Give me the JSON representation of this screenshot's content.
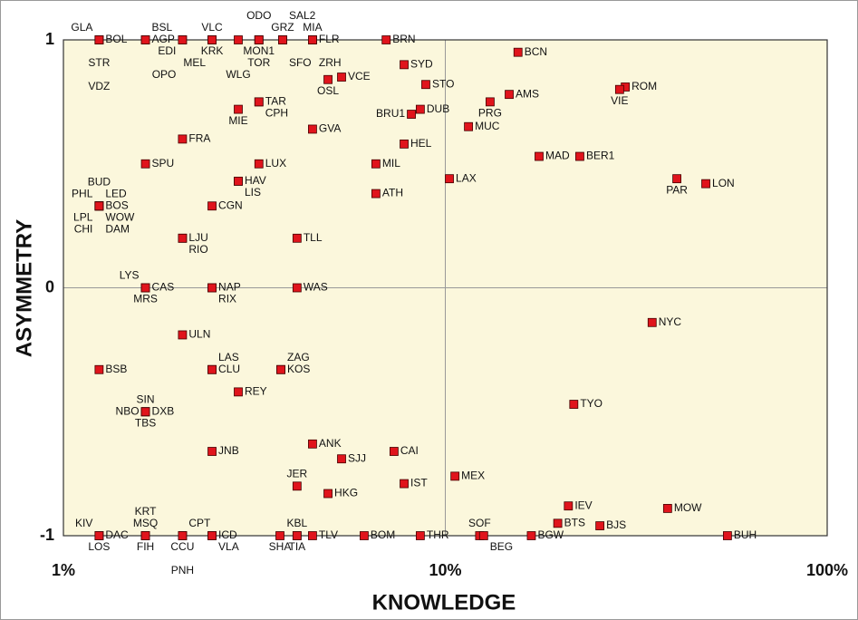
{
  "chart_data": {
    "type": "scatter",
    "x_label": "KNOWLEDGE",
    "y_label": "ASYMMETRY",
    "xlog": true,
    "xlim": [
      1,
      100
    ],
    "xticks": [
      {
        "value": 1,
        "label": "1%"
      },
      {
        "value": 10,
        "label": "10%"
      },
      {
        "value": 100,
        "label": "100%"
      }
    ],
    "ylim": [
      -1,
      1
    ],
    "yticks": [
      -1,
      0,
      1
    ],
    "grid": true,
    "color": "#e0141c",
    "background": "#fbf7dc",
    "points": [
      {
        "name": "BOL",
        "x": 1.24,
        "y": 1,
        "label_pos": "mr"
      },
      {
        "name": "GLA",
        "x": 1.24,
        "y": 1,
        "label_pos": "t1l"
      },
      {
        "name": "STR",
        "x": 1.24,
        "y": 1,
        "label_pos": "b2c"
      },
      {
        "name": "VDZ",
        "x": 1.24,
        "y": 1,
        "label_pos": "b4c"
      },
      {
        "name": "AGP",
        "x": 1.64,
        "y": 1,
        "label_pos": "mr"
      },
      {
        "name": "BSL",
        "x": 1.64,
        "y": 1,
        "label_pos": "t1r"
      },
      {
        "name": "EDI",
        "x": 2.05,
        "y": 1,
        "label_pos": "b1l"
      },
      {
        "name": "OPO",
        "x": 2.05,
        "y": 1,
        "label_pos": "b3l"
      },
      {
        "name": "VLC",
        "x": 2.45,
        "y": 1,
        "label_pos": "t1c"
      },
      {
        "name": "KRK",
        "x": 2.45,
        "y": 1,
        "label_pos": "b1c"
      },
      {
        "name": "MEL",
        "x": 2.45,
        "y": 1,
        "label_pos": "b2l"
      },
      {
        "name": "WLG",
        "x": 2.87,
        "y": 1,
        "label_pos": "b3c"
      },
      {
        "name": "ODO",
        "x": 3.25,
        "y": 1,
        "label_pos": "t2c"
      },
      {
        "name": "MON1",
        "x": 3.25,
        "y": 1,
        "label_pos": "b1c"
      },
      {
        "name": "TOR",
        "x": 3.25,
        "y": 1,
        "label_pos": "b2c"
      },
      {
        "name": "GRZ",
        "x": 3.75,
        "y": 1,
        "label_pos": "t1c"
      },
      {
        "name": "SAL2",
        "x": 3.75,
        "y": 1,
        "label_pos": "t2r"
      },
      {
        "name": "SFO",
        "x": 3.75,
        "y": 1,
        "label_pos": "b2r"
      },
      {
        "name": "MIA",
        "x": 4.49,
        "y": 1,
        "label_pos": "t1c"
      },
      {
        "name": "FLR",
        "x": 4.49,
        "y": 1,
        "label_pos": "mr"
      },
      {
        "name": "ZRH",
        "x": 4.49,
        "y": 1,
        "label_pos": "b2r"
      },
      {
        "name": "BRN",
        "x": 7.0,
        "y": 1,
        "label_pos": "mr"
      },
      {
        "name": "BCN",
        "x": 15.5,
        "y": 0.95,
        "label_pos": "mr"
      },
      {
        "name": "SYD",
        "x": 7.8,
        "y": 0.9,
        "label_pos": "mr"
      },
      {
        "name": "OSL",
        "x": 4.93,
        "y": 0.84,
        "label_pos": "b1c"
      },
      {
        "name": "VCE",
        "x": 5.35,
        "y": 0.85,
        "label_pos": "mr"
      },
      {
        "name": "STO",
        "x": 8.89,
        "y": 0.82,
        "label_pos": "mr"
      },
      {
        "name": "AMS",
        "x": 14.7,
        "y": 0.78,
        "label_pos": "mr"
      },
      {
        "name": "PRG",
        "x": 13.1,
        "y": 0.75,
        "label_pos": "b1c"
      },
      {
        "name": "ROM",
        "x": 29.6,
        "y": 0.81,
        "label_pos": "mr"
      },
      {
        "name": "VIE",
        "x": 28.6,
        "y": 0.8,
        "label_pos": "b1c"
      },
      {
        "name": "TAR",
        "x": 3.25,
        "y": 0.75,
        "label_pos": "mr"
      },
      {
        "name": "CPH",
        "x": 3.25,
        "y": 0.75,
        "label_pos": "b1r"
      },
      {
        "name": "MIE",
        "x": 2.87,
        "y": 0.72,
        "label_pos": "b1c"
      },
      {
        "name": "BRU1",
        "x": 8.15,
        "y": 0.7,
        "label_pos": "ml"
      },
      {
        "name": "DUB",
        "x": 8.6,
        "y": 0.72,
        "label_pos": "mr"
      },
      {
        "name": "MUC",
        "x": 11.5,
        "y": 0.65,
        "label_pos": "mr"
      },
      {
        "name": "GVA",
        "x": 4.49,
        "y": 0.64,
        "label_pos": "mr"
      },
      {
        "name": "FRA",
        "x": 2.05,
        "y": 0.6,
        "label_pos": "mr"
      },
      {
        "name": "HEL",
        "x": 7.8,
        "y": 0.58,
        "label_pos": "mr"
      },
      {
        "name": "MAD",
        "x": 17.6,
        "y": 0.53,
        "label_pos": "mr"
      },
      {
        "name": "BER1",
        "x": 22.5,
        "y": 0.53,
        "label_pos": "mr"
      },
      {
        "name": "SPU",
        "x": 1.64,
        "y": 0.5,
        "label_pos": "mr"
      },
      {
        "name": "LUX",
        "x": 3.25,
        "y": 0.5,
        "label_pos": "mr"
      },
      {
        "name": "MIL",
        "x": 6.58,
        "y": 0.5,
        "label_pos": "mr"
      },
      {
        "name": "LAX",
        "x": 10.25,
        "y": 0.44,
        "label_pos": "mr"
      },
      {
        "name": "PAR",
        "x": 40.4,
        "y": 0.44,
        "label_pos": "b1c"
      },
      {
        "name": "LON",
        "x": 48.1,
        "y": 0.42,
        "label_pos": "mr"
      },
      {
        "name": "HAV",
        "x": 2.87,
        "y": 0.43,
        "label_pos": "mr"
      },
      {
        "name": "LIS",
        "x": 2.87,
        "y": 0.43,
        "label_pos": "b1r"
      },
      {
        "name": "ATH",
        "x": 6.58,
        "y": 0.38,
        "label_pos": "mr"
      },
      {
        "name": "CGN",
        "x": 2.45,
        "y": 0.33,
        "label_pos": "mr"
      },
      {
        "name": "BOS",
        "x": 1.24,
        "y": 0.33,
        "label_pos": "mr"
      },
      {
        "name": "BUD",
        "x": 1.24,
        "y": 0.33,
        "label_pos": "t2c"
      },
      {
        "name": "PHL",
        "x": 1.24,
        "y": 0.33,
        "label_pos": "t1l"
      },
      {
        "name": "LED",
        "x": 1.24,
        "y": 0.33,
        "label_pos": "t1r"
      },
      {
        "name": "LPL",
        "x": 1.24,
        "y": 0.33,
        "label_pos": "b1l"
      },
      {
        "name": "WOW",
        "x": 1.24,
        "y": 0.33,
        "label_pos": "b1r"
      },
      {
        "name": "CHI",
        "x": 1.24,
        "y": 0.33,
        "label_pos": "b2l"
      },
      {
        "name": "DAM",
        "x": 1.24,
        "y": 0.33,
        "label_pos": "b2r"
      },
      {
        "name": "LJU",
        "x": 2.05,
        "y": 0.2,
        "label_pos": "mr"
      },
      {
        "name": "RIO",
        "x": 2.05,
        "y": 0.2,
        "label_pos": "b1r"
      },
      {
        "name": "TLL",
        "x": 4.09,
        "y": 0.2,
        "label_pos": "mr"
      },
      {
        "name": "CAS",
        "x": 1.64,
        "y": 0,
        "label_pos": "mr"
      },
      {
        "name": "LYS",
        "x": 1.64,
        "y": 0,
        "label_pos": "t1l"
      },
      {
        "name": "MRS",
        "x": 1.64,
        "y": 0,
        "label_pos": "b1c"
      },
      {
        "name": "NAP",
        "x": 2.45,
        "y": 0,
        "label_pos": "mr"
      },
      {
        "name": "RIX",
        "x": 2.45,
        "y": 0,
        "label_pos": "b1r"
      },
      {
        "name": "WAS",
        "x": 4.09,
        "y": 0,
        "label_pos": "mr"
      },
      {
        "name": "NYC",
        "x": 34.8,
        "y": -0.14,
        "label_pos": "mr"
      },
      {
        "name": "ULN",
        "x": 2.05,
        "y": -0.19,
        "label_pos": "mr"
      },
      {
        "name": "BSB",
        "x": 1.24,
        "y": -0.33,
        "label_pos": "mr"
      },
      {
        "name": "LAS",
        "x": 2.45,
        "y": -0.33,
        "label_pos": "t1r"
      },
      {
        "name": "CLU",
        "x": 2.45,
        "y": -0.33,
        "label_pos": "mr"
      },
      {
        "name": "ZAG",
        "x": 3.71,
        "y": -0.33,
        "label_pos": "t1r"
      },
      {
        "name": "KOS",
        "x": 3.71,
        "y": -0.33,
        "label_pos": "mr"
      },
      {
        "name": "REY",
        "x": 2.87,
        "y": -0.42,
        "label_pos": "mr"
      },
      {
        "name": "TYO",
        "x": 21.7,
        "y": -0.47,
        "label_pos": "mr"
      },
      {
        "name": "DXB",
        "x": 1.64,
        "y": -0.5,
        "label_pos": "mr"
      },
      {
        "name": "NBO",
        "x": 1.64,
        "y": -0.5,
        "label_pos": "ml"
      },
      {
        "name": "SIN",
        "x": 1.64,
        "y": -0.5,
        "label_pos": "t1c"
      },
      {
        "name": "TBS",
        "x": 1.64,
        "y": -0.5,
        "label_pos": "b1c"
      },
      {
        "name": "JNB",
        "x": 2.45,
        "y": -0.66,
        "label_pos": "mr"
      },
      {
        "name": "ANK",
        "x": 4.49,
        "y": -0.63,
        "label_pos": "mr"
      },
      {
        "name": "CAI",
        "x": 7.34,
        "y": -0.66,
        "label_pos": "mr"
      },
      {
        "name": "SJJ",
        "x": 5.35,
        "y": -0.69,
        "label_pos": "mr"
      },
      {
        "name": "MEX",
        "x": 10.6,
        "y": -0.76,
        "label_pos": "mr"
      },
      {
        "name": "IST",
        "x": 7.8,
        "y": -0.79,
        "label_pos": "mr"
      },
      {
        "name": "JER",
        "x": 4.09,
        "y": -0.8,
        "label_pos": "t1c"
      },
      {
        "name": "HKG",
        "x": 4.93,
        "y": -0.83,
        "label_pos": "mr"
      },
      {
        "name": "IEV",
        "x": 21.0,
        "y": -0.88,
        "label_pos": "mr"
      },
      {
        "name": "MOW",
        "x": 38.2,
        "y": -0.89,
        "label_pos": "mr"
      },
      {
        "name": "BTS",
        "x": 19.7,
        "y": -0.95,
        "label_pos": "mr"
      },
      {
        "name": "BJS",
        "x": 25.4,
        "y": -0.96,
        "label_pos": "mr"
      },
      {
        "name": "DAC",
        "x": 1.24,
        "y": -1,
        "label_pos": "mr"
      },
      {
        "name": "KIV",
        "x": 1.24,
        "y": -1,
        "label_pos": "t1l"
      },
      {
        "name": "LOS",
        "x": 1.24,
        "y": -1,
        "label_pos": "b1c"
      },
      {
        "name": "FIH",
        "x": 1.64,
        "y": -1,
        "label_pos": "b1c"
      },
      {
        "name": "MSQ",
        "x": 1.64,
        "y": -1,
        "label_pos": "t1c"
      },
      {
        "name": "KRT",
        "x": 1.64,
        "y": -1,
        "label_pos": "t2c"
      },
      {
        "name": "CCU",
        "x": 2.05,
        "y": -1,
        "label_pos": "b1c"
      },
      {
        "name": "CPT",
        "x": 2.05,
        "y": -1,
        "label_pos": "t1r"
      },
      {
        "name": "PNH",
        "x": 2.05,
        "y": -1,
        "label_pos": "b3c"
      },
      {
        "name": "ICD",
        "x": 2.45,
        "y": -1,
        "label_pos": "mr"
      },
      {
        "name": "VLA",
        "x": 2.45,
        "y": -1,
        "label_pos": "b1r"
      },
      {
        "name": "SHA",
        "x": 3.69,
        "y": -1,
        "label_pos": "b1c"
      },
      {
        "name": "TIA",
        "x": 4.09,
        "y": -1,
        "label_pos": "b1c"
      },
      {
        "name": "KBL",
        "x": 4.09,
        "y": -1,
        "label_pos": "t1c"
      },
      {
        "name": "TLV",
        "x": 4.49,
        "y": -1,
        "label_pos": "mr"
      },
      {
        "name": "BOM",
        "x": 6.13,
        "y": -1,
        "label_pos": "mr"
      },
      {
        "name": "THR",
        "x": 8.6,
        "y": -1,
        "label_pos": "mr"
      },
      {
        "name": "SOF",
        "x": 12.3,
        "y": -1,
        "label_pos": "t1c"
      },
      {
        "name": "BEG",
        "x": 12.6,
        "y": -1,
        "label_pos": "b1r"
      },
      {
        "name": "BGW",
        "x": 16.8,
        "y": -1,
        "label_pos": "mr"
      },
      {
        "name": "BUH",
        "x": 54.8,
        "y": -1,
        "label_pos": "mr"
      }
    ]
  }
}
